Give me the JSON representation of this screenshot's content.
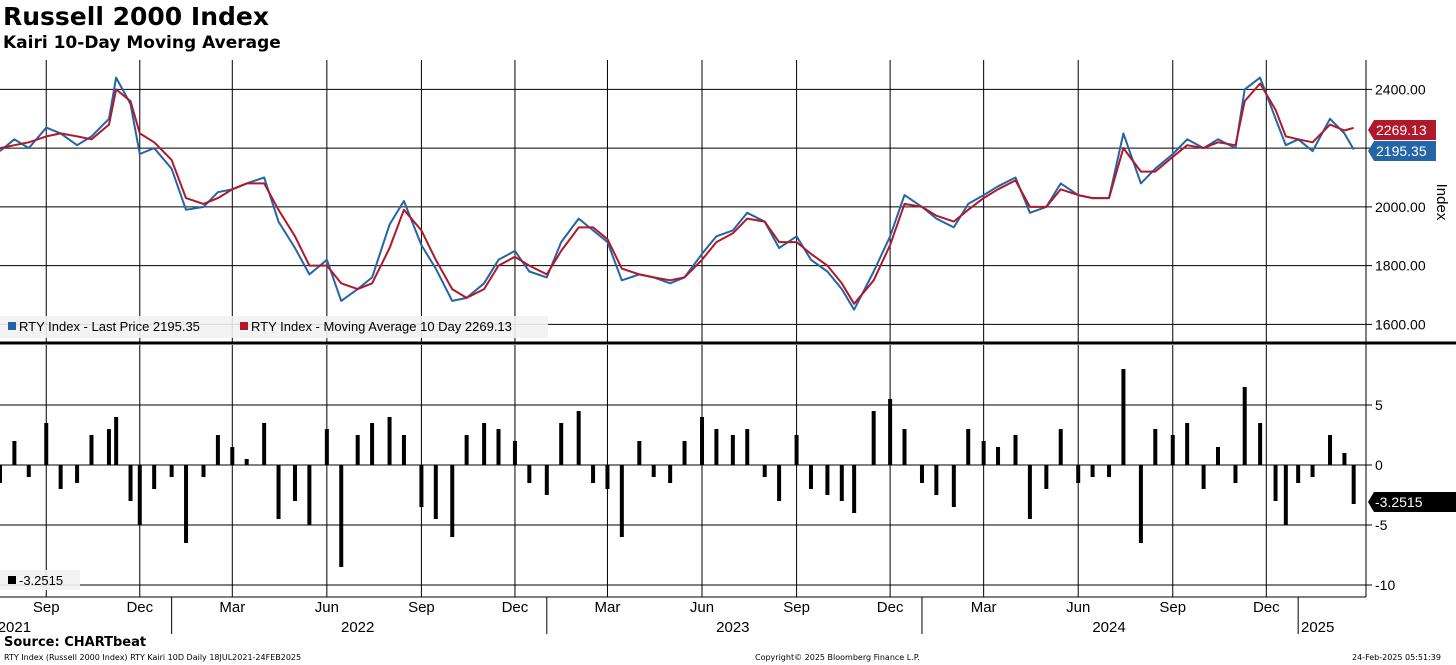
{
  "title": "Russell 2000 Index",
  "subtitle": "Kairi 10-Day Moving Average",
  "source": "Source: CHARTbeat",
  "footer": {
    "left": "RTY Index (Russell 2000 Index) RTY Kairi 10D  Daily 18JUL2021-24FEB2025",
    "center": "Copyright© 2025 Bloomberg Finance L.P.",
    "right": "24-Feb-2025 05:51:39"
  },
  "colors": {
    "last_price": "#2465a6",
    "moving_average": "#b0182b",
    "kairi": "#000000",
    "grid": "#000000"
  },
  "chart_data": [
    {
      "type": "line",
      "ylabel": "Index",
      "ylim": [
        1540,
        2500
      ],
      "y_ticks": [
        1600,
        1800,
        2000,
        2200,
        2400
      ],
      "y_tick_labels": [
        "1600.00",
        "1800.00",
        "2000.00",
        "",
        "2400.00"
      ],
      "legend_placement": "bottom-left",
      "legend": [
        "RTY Index - Last Price 2195.35",
        "RTY Index - Moving Average 10 Day 2269.13"
      ],
      "last_value_labels": [
        "2269.13",
        "2195.35"
      ],
      "x": [
        "2021-07-18",
        "2021-08-01",
        "2021-08-15",
        "2021-09-01",
        "2021-09-15",
        "2021-10-01",
        "2021-10-15",
        "2021-11-01",
        "2021-11-08",
        "2021-11-22",
        "2021-12-01",
        "2021-12-15",
        "2022-01-01",
        "2022-01-15",
        "2022-02-01",
        "2022-02-15",
        "2022-03-01",
        "2022-03-15",
        "2022-04-01",
        "2022-04-15",
        "2022-05-01",
        "2022-05-15",
        "2022-06-01",
        "2022-06-15",
        "2022-07-01",
        "2022-07-15",
        "2022-08-01",
        "2022-08-15",
        "2022-09-01",
        "2022-09-15",
        "2022-10-01",
        "2022-10-15",
        "2022-11-01",
        "2022-11-15",
        "2022-12-01",
        "2022-12-15",
        "2023-01-01",
        "2023-01-15",
        "2023-02-01",
        "2023-02-15",
        "2023-03-01",
        "2023-03-15",
        "2023-04-01",
        "2023-04-15",
        "2023-05-01",
        "2023-05-15",
        "2023-06-01",
        "2023-06-15",
        "2023-07-01",
        "2023-07-15",
        "2023-08-01",
        "2023-08-15",
        "2023-09-01",
        "2023-09-15",
        "2023-10-01",
        "2023-10-15",
        "2023-10-27",
        "2023-11-15",
        "2023-12-01",
        "2023-12-15",
        "2024-01-01",
        "2024-01-15",
        "2024-02-01",
        "2024-02-15",
        "2024-03-01",
        "2024-03-15",
        "2024-04-01",
        "2024-04-15",
        "2024-05-01",
        "2024-05-15",
        "2024-06-01",
        "2024-06-15",
        "2024-07-01",
        "2024-07-15",
        "2024-08-01",
        "2024-08-15",
        "2024-09-01",
        "2024-09-15",
        "2024-10-01",
        "2024-10-15",
        "2024-11-01",
        "2024-11-10",
        "2024-11-25",
        "2024-12-10",
        "2024-12-20",
        "2025-01-01",
        "2025-01-15",
        "2025-02-01",
        "2025-02-15",
        "2025-02-24"
      ],
      "series": [
        {
          "name": "RTY Index - Last Price",
          "values": [
            2190,
            2230,
            2200,
            2270,
            2250,
            2210,
            2240,
            2300,
            2440,
            2350,
            2180,
            2200,
            2130,
            1990,
            2000,
            2050,
            2060,
            2080,
            2100,
            1950,
            1860,
            1770,
            1820,
            1680,
            1720,
            1760,
            1940,
            2020,
            1870,
            1790,
            1680,
            1690,
            1740,
            1820,
            1850,
            1780,
            1760,
            1880,
            1960,
            1920,
            1880,
            1750,
            1770,
            1760,
            1740,
            1760,
            1840,
            1900,
            1920,
            1980,
            1950,
            1860,
            1900,
            1820,
            1780,
            1720,
            1650,
            1780,
            1900,
            2040,
            2000,
            1960,
            1930,
            2010,
            2040,
            2070,
            2100,
            1980,
            2000,
            2080,
            2040,
            2030,
            2030,
            2250,
            2080,
            2130,
            2180,
            2230,
            2200,
            2230,
            2200,
            2400,
            2440,
            2300,
            2210,
            2230,
            2190,
            2300,
            2250,
            2195.35
          ]
        },
        {
          "name": "RTY Index - Moving Average 10 Day",
          "values": [
            2200,
            2210,
            2220,
            2240,
            2250,
            2240,
            2230,
            2280,
            2400,
            2360,
            2250,
            2220,
            2160,
            2030,
            2010,
            2030,
            2060,
            2080,
            2080,
            1990,
            1900,
            1800,
            1800,
            1740,
            1720,
            1740,
            1860,
            1990,
            1920,
            1820,
            1720,
            1690,
            1720,
            1800,
            1830,
            1800,
            1770,
            1850,
            1930,
            1930,
            1890,
            1790,
            1770,
            1760,
            1750,
            1760,
            1820,
            1880,
            1910,
            1960,
            1950,
            1880,
            1880,
            1840,
            1800,
            1740,
            1670,
            1750,
            1870,
            2010,
            2000,
            1970,
            1950,
            1990,
            2030,
            2060,
            2090,
            2000,
            2000,
            2060,
            2040,
            2030,
            2030,
            2200,
            2120,
            2120,
            2170,
            2210,
            2200,
            2220,
            2210,
            2360,
            2420,
            2330,
            2240,
            2230,
            2220,
            2280,
            2260,
            2269.13
          ]
        }
      ]
    },
    {
      "type": "bar",
      "ylim": [
        -11,
        10
      ],
      "y_ticks": [
        5,
        0,
        -5,
        -10
      ],
      "y_tick_labels": [
        "5",
        "0",
        "-5",
        "-10"
      ],
      "legend_placement": "bottom-left",
      "legend": [
        "-3.2515"
      ],
      "last_value_label": "-3.2515",
      "x": [
        "2021-07-18",
        "2021-08-01",
        "2021-08-15",
        "2021-09-01",
        "2021-09-15",
        "2021-10-01",
        "2021-10-15",
        "2021-11-01",
        "2021-11-08",
        "2021-11-22",
        "2021-12-01",
        "2021-12-15",
        "2022-01-01",
        "2022-01-15",
        "2022-02-01",
        "2022-02-15",
        "2022-03-01",
        "2022-03-15",
        "2022-04-01",
        "2022-04-15",
        "2022-05-01",
        "2022-05-15",
        "2022-06-01",
        "2022-06-15",
        "2022-07-01",
        "2022-07-15",
        "2022-08-01",
        "2022-08-15",
        "2022-09-01",
        "2022-09-15",
        "2022-10-01",
        "2022-10-15",
        "2022-11-01",
        "2022-11-15",
        "2022-12-01",
        "2022-12-15",
        "2023-01-01",
        "2023-01-15",
        "2023-02-01",
        "2023-02-15",
        "2023-03-01",
        "2023-03-15",
        "2023-04-01",
        "2023-04-15",
        "2023-05-01",
        "2023-05-15",
        "2023-06-01",
        "2023-06-15",
        "2023-07-01",
        "2023-07-15",
        "2023-08-01",
        "2023-08-15",
        "2023-09-01",
        "2023-09-15",
        "2023-10-01",
        "2023-10-15",
        "2023-10-27",
        "2023-11-15",
        "2023-12-01",
        "2023-12-15",
        "2024-01-01",
        "2024-01-15",
        "2024-02-01",
        "2024-02-15",
        "2024-03-01",
        "2024-03-15",
        "2024-04-01",
        "2024-04-15",
        "2024-05-01",
        "2024-05-15",
        "2024-06-01",
        "2024-06-15",
        "2024-07-01",
        "2024-07-15",
        "2024-08-01",
        "2024-08-15",
        "2024-09-01",
        "2024-09-15",
        "2024-10-01",
        "2024-10-15",
        "2024-11-01",
        "2024-11-10",
        "2024-11-25",
        "2024-12-10",
        "2024-12-20",
        "2025-01-01",
        "2025-01-15",
        "2025-02-01",
        "2025-02-15",
        "2025-02-24"
      ],
      "values": [
        -1.5,
        2.0,
        -1.0,
        3.5,
        -2.0,
        -1.5,
        2.5,
        3.0,
        4.0,
        -3.0,
        -5.0,
        -2.0,
        -1.0,
        -6.5,
        -1.0,
        2.5,
        1.5,
        0.5,
        3.5,
        -4.5,
        -3.0,
        -5.0,
        3.0,
        -8.5,
        2.5,
        3.5,
        4.0,
        2.5,
        -3.5,
        -4.5,
        -6.0,
        2.5,
        3.5,
        3.0,
        2.0,
        -1.5,
        -2.5,
        3.5,
        4.5,
        -1.5,
        -2.0,
        -6.0,
        2.0,
        -1.0,
        -1.5,
        2.0,
        4.0,
        3.0,
        2.5,
        3.0,
        -1.0,
        -3.0,
        2.5,
        -2.0,
        -2.5,
        -3.0,
        -4.0,
        4.5,
        5.5,
        3.0,
        -1.5,
        -2.5,
        -3.5,
        3.0,
        2.0,
        1.5,
        2.5,
        -4.5,
        -2.0,
        3.0,
        -1.5,
        -1.0,
        -1.0,
        8.0,
        -6.5,
        3.0,
        2.5,
        3.5,
        -2.0,
        1.5,
        -1.5,
        6.5,
        3.5,
        -3.0,
        -5.0,
        -1.5,
        -1.0,
        2.5,
        1.0,
        -3.2515
      ]
    }
  ],
  "x_axis": {
    "month_labels": [
      {
        "date": "2021-09-01",
        "label": "Sep"
      },
      {
        "date": "2021-12-01",
        "label": "Dec"
      },
      {
        "date": "2022-03-01",
        "label": "Mar"
      },
      {
        "date": "2022-06-01",
        "label": "Jun"
      },
      {
        "date": "2022-09-01",
        "label": "Sep"
      },
      {
        "date": "2022-12-01",
        "label": "Dec"
      },
      {
        "date": "2023-03-01",
        "label": "Mar"
      },
      {
        "date": "2023-06-01",
        "label": "Jun"
      },
      {
        "date": "2023-09-01",
        "label": "Sep"
      },
      {
        "date": "2023-12-01",
        "label": "Dec"
      },
      {
        "date": "2024-03-01",
        "label": "Mar"
      },
      {
        "date": "2024-06-01",
        "label": "Jun"
      },
      {
        "date": "2024-09-01",
        "label": "Sep"
      },
      {
        "date": "2024-12-01",
        "label": "Dec"
      }
    ],
    "year_labels": [
      {
        "date": "2021-08-01",
        "label": "2021"
      },
      {
        "date": "2022-07-01",
        "label": "2022"
      },
      {
        "date": "2023-07-01",
        "label": "2023"
      },
      {
        "date": "2024-07-01",
        "label": "2024"
      },
      {
        "date": "2025-01-20",
        "label": "2025"
      }
    ],
    "year_boundaries": [
      "2022-01-01",
      "2023-01-01",
      "2024-01-01",
      "2025-01-01"
    ],
    "range": [
      "2021-07-18",
      "2025-03-08"
    ]
  }
}
